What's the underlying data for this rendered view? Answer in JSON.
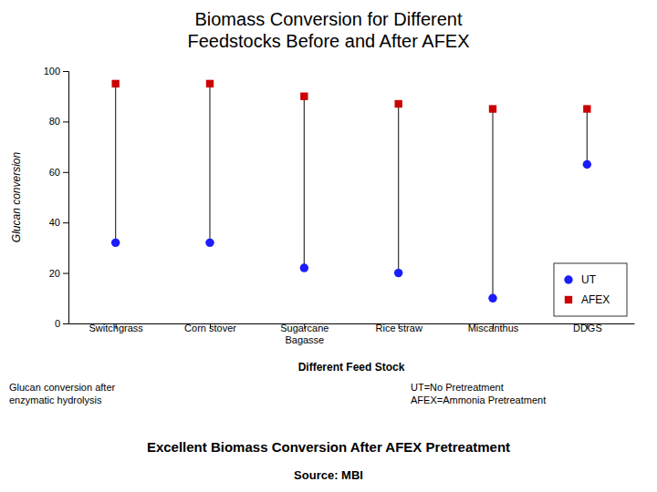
{
  "chart_data": {
    "type": "dumbbell",
    "title": "Biomass Conversion for Different\nFeedstocks Before and After AFEX",
    "subtitle": "Excellent Biomass Conversion After AFEX Pretreatment",
    "x_label": "Different Feed Stock",
    "y_label": "Glucan conversion",
    "categories": [
      "Switchgrass",
      "Corn stover",
      "Sugarcane\nBagasse",
      "Rice straw",
      "Miscanthus",
      "DDGS"
    ],
    "series": [
      {
        "name": "UT",
        "color": "#1c1cff",
        "marker": "circle",
        "values": [
          32,
          32,
          22,
          20,
          10,
          63
        ]
      },
      {
        "name": "AFEX",
        "color": "#cc0000",
        "marker": "square",
        "values": [
          95,
          95,
          90,
          87,
          85,
          85
        ]
      }
    ],
    "ylim": [
      0,
      100
    ],
    "yticks": [
      0,
      20,
      40,
      60,
      80,
      100
    ],
    "grid": false,
    "legend": "lower right",
    "annotations": [
      "Glucan conversion after\nenzymatic hydrolysis",
      "UT=No Pretreatment\nAFEX=Ammonia Pretreatment",
      "Source: MBI"
    ]
  }
}
